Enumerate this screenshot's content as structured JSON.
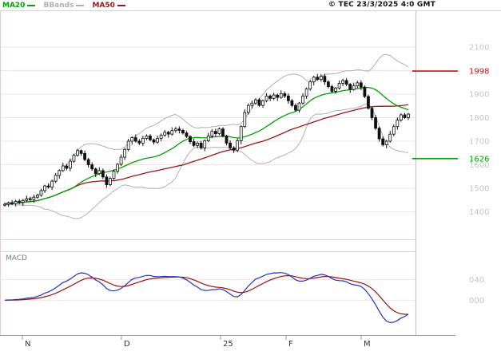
{
  "header": {
    "legend": [
      {
        "label": "MA20",
        "color": "#00a000"
      },
      {
        "label": "BBands",
        "color": "#b0b0b0"
      },
      {
        "label": "MA50",
        "color": "#9b1616"
      }
    ],
    "copyright": "© TEC 23/3/2025 4:0 GMT"
  },
  "price_axis": {
    "tick_color": "#c4c4c4",
    "ticks": [
      {
        "label": "2100",
        "value": 2100
      },
      {
        "label": "1900",
        "value": 1900
      },
      {
        "label": "1800",
        "value": 1800
      },
      {
        "label": "1700",
        "value": 1700
      },
      {
        "label": "1600",
        "value": 1600
      },
      {
        "label": "1500",
        "value": 1500
      },
      {
        "label": "1400",
        "value": 1400
      }
    ],
    "grid_values": [
      2100,
      2000,
      1900,
      1800,
      1700,
      1600,
      1500,
      1400
    ],
    "levels": [
      {
        "label": "1998",
        "value": 1998,
        "color": "#cc1111"
      },
      {
        "label": "1626",
        "value": 1626,
        "color": "#00a000"
      }
    ]
  },
  "x_axis": {
    "color": "#333333",
    "labels": [
      {
        "text": "N",
        "x": 28
      },
      {
        "text": "D",
        "x": 152
      },
      {
        "text": "25",
        "x": 276
      },
      {
        "text": "F",
        "x": 358
      },
      {
        "text": "M",
        "x": 452
      }
    ]
  },
  "macd_panel": {
    "label": "MACD",
    "macd_color": "#2233bb",
    "signal_color": "#991111",
    "value_range": [
      -55,
      90
    ],
    "ticks": [
      {
        "label": "040",
        "value": 40
      },
      {
        "label": "000",
        "value": 0
      }
    ]
  },
  "chart_data": {
    "type": "candlestick",
    "title": "",
    "x_tick_labels": [
      "N",
      "D",
      "25",
      "F",
      "M"
    ],
    "y_range": [
      1400,
      2100
    ],
    "levels": {
      "resistance": 1998,
      "support": 1626
    },
    "overlays": {
      "ma20": "SMA(close,20)",
      "ma50": "SMA(close,50)",
      "bbands": "SMA20 ± 2·sigma20"
    },
    "indicator": {
      "macd": "EMA12 − EMA26",
      "signal": "EMA9(MACD)"
    },
    "candles_ohlc": [
      [
        1428,
        1440,
        1422,
        1432
      ],
      [
        1432,
        1443,
        1422,
        1438
      ],
      [
        1438,
        1450,
        1428,
        1435
      ],
      [
        1435,
        1451,
        1423,
        1444
      ],
      [
        1444,
        1454,
        1432,
        1440
      ],
      [
        1440,
        1454,
        1425,
        1448
      ],
      [
        1448,
        1469,
        1442,
        1455
      ],
      [
        1455,
        1464,
        1443,
        1452
      ],
      [
        1452,
        1473,
        1439,
        1462
      ],
      [
        1462,
        1477,
        1455,
        1470
      ],
      [
        1470,
        1498,
        1464,
        1490
      ],
      [
        1490,
        1515,
        1480,
        1510
      ],
      [
        1510,
        1522,
        1498,
        1505
      ],
      [
        1505,
        1537,
        1493,
        1530
      ],
      [
        1530,
        1565,
        1522,
        1555
      ],
      [
        1555,
        1581,
        1540,
        1575
      ],
      [
        1575,
        1609,
        1569,
        1595
      ],
      [
        1595,
        1604,
        1576,
        1585
      ],
      [
        1585,
        1626,
        1572,
        1615
      ],
      [
        1615,
        1647,
        1608,
        1640
      ],
      [
        1640,
        1668,
        1634,
        1660
      ],
      [
        1660,
        1665,
        1638,
        1648
      ],
      [
        1648,
        1660,
        1615,
        1622
      ],
      [
        1622,
        1629,
        1588,
        1600
      ],
      [
        1600,
        1610,
        1574,
        1582
      ],
      [
        1582,
        1588,
        1547,
        1562
      ],
      [
        1562,
        1589,
        1556,
        1575
      ],
      [
        1575,
        1584,
        1539,
        1548
      ],
      [
        1548,
        1559,
        1502,
        1515
      ],
      [
        1515,
        1549,
        1508,
        1542
      ],
      [
        1542,
        1580,
        1536,
        1572
      ],
      [
        1572,
        1607,
        1562,
        1602
      ],
      [
        1602,
        1644,
        1595,
        1632
      ],
      [
        1632,
        1672,
        1620,
        1665
      ],
      [
        1665,
        1710,
        1657,
        1700
      ],
      [
        1700,
        1721,
        1685,
        1715
      ],
      [
        1715,
        1729,
        1694,
        1700
      ],
      [
        1700,
        1709,
        1683,
        1692
      ],
      [
        1692,
        1723,
        1679,
        1712
      ],
      [
        1712,
        1729,
        1705,
        1722
      ],
      [
        1722,
        1730,
        1700,
        1706
      ],
      [
        1706,
        1711,
        1686,
        1696
      ],
      [
        1696,
        1724,
        1689,
        1712
      ],
      [
        1712,
        1733,
        1700,
        1726
      ],
      [
        1726,
        1748,
        1718,
        1738
      ],
      [
        1738,
        1744,
        1715,
        1730
      ],
      [
        1730,
        1759,
        1724,
        1745
      ],
      [
        1745,
        1761,
        1736,
        1752
      ],
      [
        1752,
        1763,
        1733,
        1746
      ],
      [
        1746,
        1753,
        1728,
        1735
      ],
      [
        1735,
        1743,
        1714,
        1720
      ],
      [
        1720,
        1725,
        1688,
        1698
      ],
      [
        1698,
        1710,
        1675,
        1682
      ],
      [
        1682,
        1699,
        1670,
        1692
      ],
      [
        1692,
        1702,
        1664,
        1672
      ],
      [
        1672,
        1708,
        1657,
        1702
      ],
      [
        1702,
        1736,
        1696,
        1722
      ],
      [
        1722,
        1751,
        1713,
        1742
      ],
      [
        1742,
        1753,
        1719,
        1732
      ],
      [
        1732,
        1759,
        1725,
        1752
      ],
      [
        1752,
        1760,
        1716,
        1722
      ],
      [
        1722,
        1727,
        1682,
        1692
      ],
      [
        1692,
        1704,
        1665,
        1672
      ],
      [
        1672,
        1679,
        1650,
        1662
      ],
      [
        1662,
        1712,
        1654,
        1702
      ],
      [
        1702,
        1768,
        1687,
        1762
      ],
      [
        1762,
        1836,
        1756,
        1822
      ],
      [
        1822,
        1861,
        1813,
        1852
      ],
      [
        1852,
        1873,
        1839,
        1862
      ],
      [
        1862,
        1883,
        1855,
        1876
      ],
      [
        1876,
        1884,
        1846,
        1852
      ],
      [
        1852,
        1877,
        1842,
        1872
      ],
      [
        1872,
        1904,
        1865,
        1892
      ],
      [
        1892,
        1899,
        1870,
        1882
      ],
      [
        1882,
        1906,
        1874,
        1896
      ],
      [
        1896,
        1902,
        1871,
        1886
      ],
      [
        1886,
        1916,
        1880,
        1902
      ],
      [
        1902,
        1911,
        1883,
        1892
      ],
      [
        1892,
        1903,
        1859,
        1872
      ],
      [
        1872,
        1879,
        1845,
        1852
      ],
      [
        1852,
        1860,
        1826,
        1832
      ],
      [
        1832,
        1867,
        1822,
        1862
      ],
      [
        1862,
        1904,
        1855,
        1892
      ],
      [
        1892,
        1929,
        1880,
        1922
      ],
      [
        1922,
        1962,
        1914,
        1952
      ],
      [
        1952,
        1978,
        1937,
        1972
      ],
      [
        1972,
        1986,
        1956,
        1962
      ],
      [
        1962,
        1985,
        1953,
        1976
      ],
      [
        1976,
        1987,
        1939,
        1952
      ],
      [
        1952,
        1959,
        1925,
        1932
      ],
      [
        1932,
        1940,
        1906,
        1912
      ],
      [
        1912,
        1931,
        1902,
        1926
      ],
      [
        1926,
        1958,
        1919,
        1946
      ],
      [
        1946,
        1965,
        1934,
        1958
      ],
      [
        1958,
        1968,
        1934,
        1942
      ],
      [
        1942,
        1948,
        1905,
        1920
      ],
      [
        1920,
        1949,
        1914,
        1935
      ],
      [
        1935,
        1957,
        1926,
        1948
      ],
      [
        1948,
        1959,
        1917,
        1930
      ],
      [
        1930,
        1937,
        1883,
        1890
      ],
      [
        1890,
        1898,
        1834,
        1840
      ],
      [
        1840,
        1845,
        1790,
        1800
      ],
      [
        1800,
        1812,
        1748,
        1755
      ],
      [
        1755,
        1762,
        1698,
        1710
      ],
      [
        1710,
        1720,
        1677,
        1685
      ],
      [
        1685,
        1706,
        1670,
        1700
      ],
      [
        1700,
        1744,
        1694,
        1730
      ],
      [
        1730,
        1771,
        1721,
        1762
      ],
      [
        1762,
        1801,
        1749,
        1790
      ],
      [
        1790,
        1819,
        1783,
        1812
      ],
      [
        1812,
        1820,
        1794,
        1800
      ],
      [
        1800,
        1820,
        1790,
        1815
      ]
    ]
  }
}
